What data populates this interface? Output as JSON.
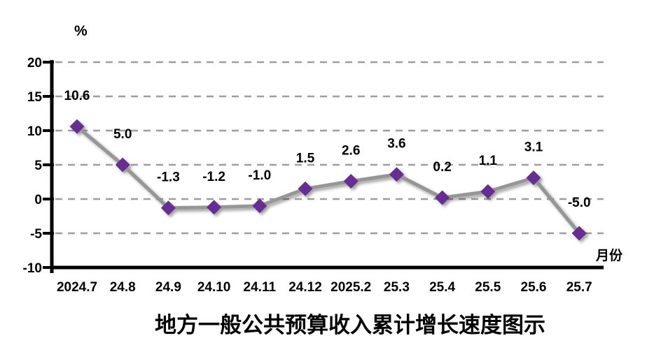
{
  "chart_data": {
    "type": "line",
    "title": "地方一般公共预算收入累计增长速度图示",
    "y_axis_unit": "%",
    "x_axis_unit": "月份",
    "categories": [
      "2024.7",
      "24.8",
      "24.9",
      "24.10",
      "24.11",
      "24.12",
      "2025.2",
      "25.3",
      "25.4",
      "25.5",
      "25.6",
      "25.7"
    ],
    "values": [
      10.6,
      5.0,
      -1.3,
      -1.2,
      -1.0,
      1.5,
      2.6,
      3.6,
      0.2,
      1.1,
      3.1,
      -5.0
    ],
    "point_labels": [
      "10.6",
      "5.0",
      "-1.3",
      "-1.2",
      "-1.0",
      "1.5",
      "2.6",
      "3.6",
      "0.2",
      "1.1",
      "3.1",
      "-5.0"
    ],
    "ylim": [
      -10,
      20
    ],
    "yticks": [
      20,
      15,
      10,
      5,
      0,
      -5,
      -10
    ],
    "grid": "horizontal-dashed",
    "legend": "none",
    "marker_shape": "diamond",
    "colors": {
      "line": "#969696",
      "marker": "#662D91",
      "axis": "#000000",
      "gridline": "#9E9E9E",
      "text": "#000000",
      "background": "#FFFFFF"
    }
  }
}
